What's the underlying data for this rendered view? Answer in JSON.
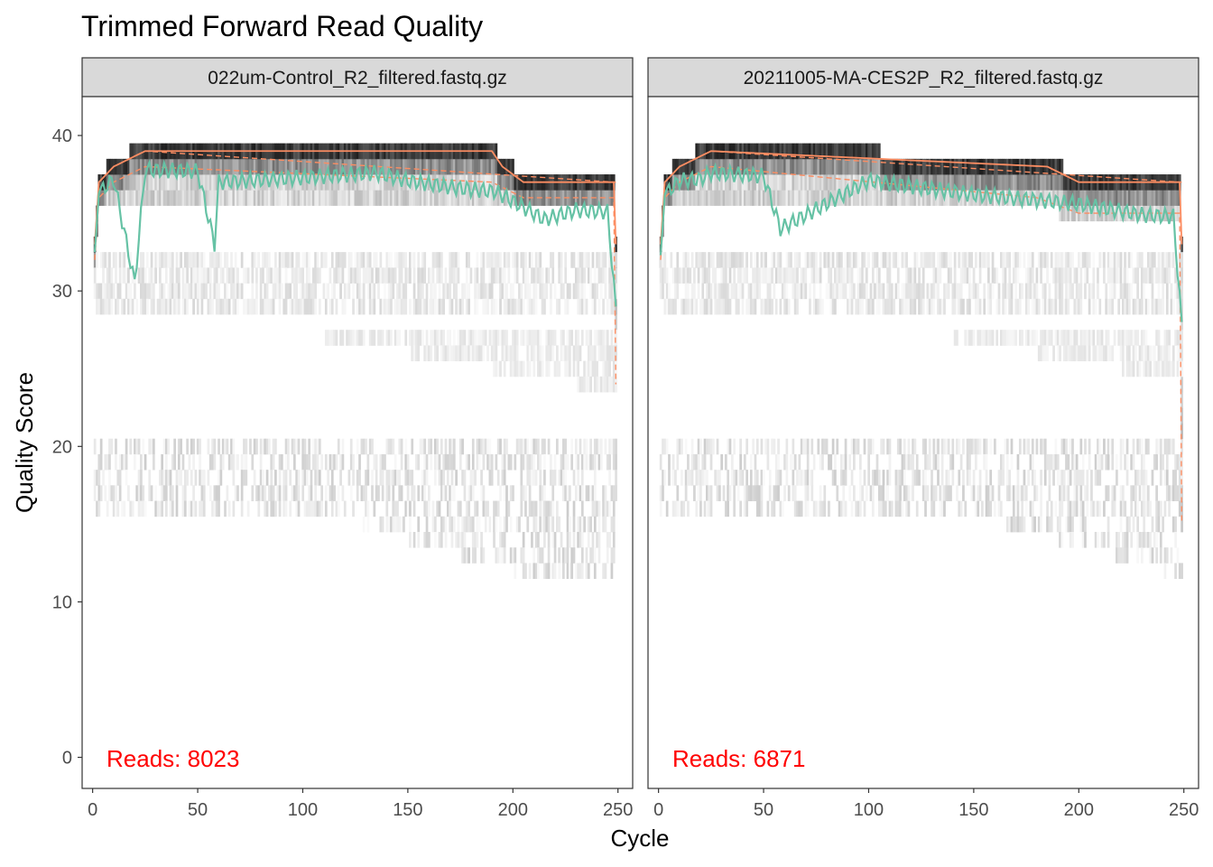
{
  "chart_data": {
    "type": "heatmap",
    "title": "Trimmed Forward Read Quality",
    "xlabel": "Cycle",
    "ylabel": "Quality Score",
    "xlim": [
      -5,
      257
    ],
    "ylim": [
      -2,
      42.5
    ],
    "x_ticks": [
      "0",
      "50",
      "100",
      "150",
      "200",
      "250"
    ],
    "y_ticks": [
      "0",
      "10",
      "20",
      "30",
      "40"
    ],
    "colors": {
      "mean_line": "#66c2a5",
      "quantile_lines": "#fc8d62",
      "reads_label": "#ff0000",
      "heat_dark": "#1a1a1a",
      "heat_light": "#f2f2f2",
      "strip_fill": "#d9d9d9"
    },
    "panels": [
      {
        "strip_label": "022um-Control_R2_filtered.fastq.gz",
        "reads_text": "Reads:  8023",
        "reads": 8023,
        "cycles": 249,
        "mean_quality": [
          [
            1,
            32.5
          ],
          [
            3,
            36.3
          ],
          [
            10,
            37.2
          ],
          [
            20,
            30.5
          ],
          [
            25,
            37.8
          ],
          [
            50,
            37.7
          ],
          [
            58,
            33
          ],
          [
            60,
            37
          ],
          [
            100,
            37.3
          ],
          [
            135,
            37.6
          ],
          [
            150,
            37.1
          ],
          [
            175,
            36.6
          ],
          [
            192,
            36.4
          ],
          [
            215,
            34.6
          ],
          [
            230,
            35.2
          ],
          [
            245,
            35.1
          ],
          [
            249,
            29
          ]
        ],
        "median_quality": [
          [
            1,
            33
          ],
          [
            3,
            37
          ],
          [
            10,
            38
          ],
          [
            25,
            39
          ],
          [
            190,
            39
          ],
          [
            195,
            38
          ],
          [
            205,
            37
          ],
          [
            248,
            37
          ],
          [
            249,
            33
          ]
        ],
        "q25_quality": [
          [
            1,
            32
          ],
          [
            3,
            36
          ],
          [
            10,
            37
          ],
          [
            25,
            38
          ],
          [
            190,
            37
          ],
          [
            205,
            36
          ],
          [
            248,
            36
          ],
          [
            249,
            24
          ]
        ],
        "q75_quality": [
          [
            1,
            33
          ],
          [
            3,
            37
          ],
          [
            10,
            38
          ],
          [
            25,
            39
          ],
          [
            248,
            37
          ],
          [
            249,
            37
          ]
        ]
      },
      {
        "strip_label": "20211005-MA-CES2P_R2_filtered.fastq.gz",
        "reads_text": "Reads:  6871",
        "reads": 6871,
        "cycles": 249,
        "mean_quality": [
          [
            1,
            32.3
          ],
          [
            3,
            36.2
          ],
          [
            10,
            37.1
          ],
          [
            20,
            37.2
          ],
          [
            25,
            37.6
          ],
          [
            50,
            37.4
          ],
          [
            58,
            34
          ],
          [
            100,
            37.1
          ],
          [
            150,
            36.2
          ],
          [
            200,
            35.6
          ],
          [
            230,
            34.9
          ],
          [
            245,
            34.8
          ],
          [
            249,
            28
          ]
        ],
        "median_quality": [
          [
            1,
            33
          ],
          [
            3,
            37
          ],
          [
            10,
            38
          ],
          [
            25,
            39
          ],
          [
            185,
            38
          ],
          [
            200,
            37
          ],
          [
            248,
            37
          ],
          [
            249,
            33
          ]
        ],
        "q25_quality": [
          [
            1,
            32
          ],
          [
            3,
            36
          ],
          [
            10,
            37
          ],
          [
            25,
            38
          ],
          [
            180,
            36
          ],
          [
            200,
            35
          ],
          [
            248,
            35
          ],
          [
            249,
            15
          ]
        ],
        "q75_quality": [
          [
            1,
            33
          ],
          [
            3,
            37
          ],
          [
            10,
            38
          ],
          [
            25,
            39
          ],
          [
            248,
            37
          ],
          [
            249,
            37
          ]
        ]
      }
    ]
  }
}
